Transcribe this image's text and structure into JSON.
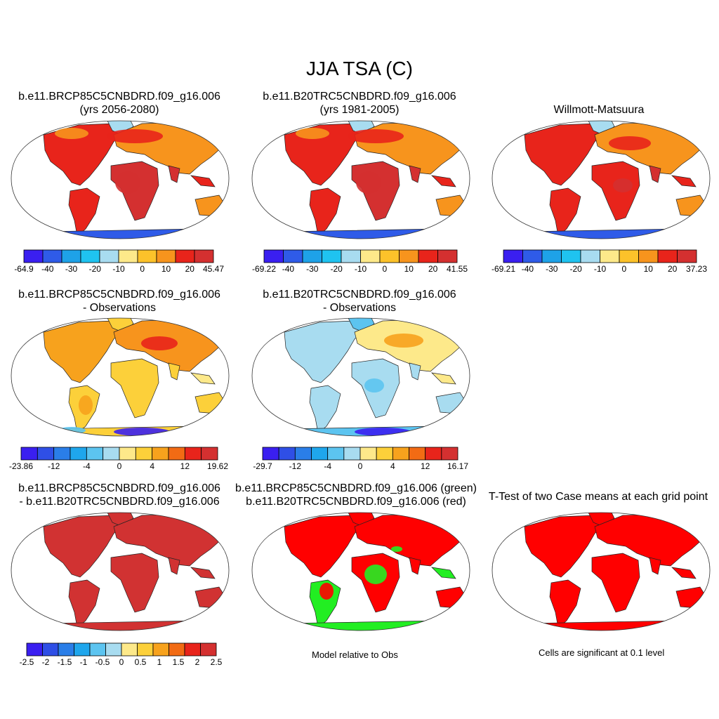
{
  "title": "JJA TSA (C)",
  "panels": [
    {
      "id": "p1",
      "title_lines": [
        "b.e11.BRCP85C5CNBDRD.f09_g16.006",
        "(yrs 2056-2080)"
      ],
      "kind": "abs_hot"
    },
    {
      "id": "p2",
      "title_lines": [
        "b.e11.B20TRC5CNBDRD.f09_g16.006",
        "(yrs 1981-2005)"
      ],
      "kind": "abs"
    },
    {
      "id": "p3",
      "title_lines": [
        "Willmott-Matsuura"
      ],
      "kind": "abs"
    },
    {
      "id": "p4",
      "title_lines": [
        "b.e11.BRCP85C5CNBDRD.f09_g16.006",
        "- Observations"
      ],
      "kind": "diff_warm"
    },
    {
      "id": "p5",
      "title_lines": [
        "b.e11.B20TRC5CNBDRD.f09_g16.006",
        "- Observations"
      ],
      "kind": "diff_cool"
    },
    {
      "id": "p7",
      "title_lines": [
        "b.e11.BRCP85C5CNBDRD.f09_g16.006",
        "- b.e11.B20TRC5CNBDRD.f09_g16.006"
      ],
      "kind": "diff2"
    },
    {
      "id": "p8",
      "title_lines": [
        "b.e11.BRCP85C5CNBDRD.f09_g16.006 (green)",
        "b.e11.B20TRC5CNBDRD.f09_g16.006 (red)"
      ],
      "kind": "green_red"
    },
    {
      "id": "p9",
      "title_lines": [
        "T-Test of two Case means at each grid point"
      ],
      "kind": "ttest"
    }
  ],
  "colorbars": [
    {
      "id": "cb1",
      "labels": [
        "-64.9",
        "-40",
        "-30",
        "-20",
        "-10",
        "0",
        "10",
        "20",
        "45.47"
      ]
    },
    {
      "id": "cb2",
      "labels": [
        "-69.22",
        "-40",
        "-30",
        "-20",
        "-10",
        "0",
        "10",
        "20",
        "41.55"
      ]
    },
    {
      "id": "cb3",
      "labels": [
        "-69.21",
        "-40",
        "-30",
        "-20",
        "-10",
        "0",
        "10",
        "20",
        "37.23"
      ]
    },
    {
      "id": "cb4",
      "labels": [
        "-23.86",
        "-12",
        "-4",
        "0",
        "4",
        "12",
        "19.62"
      ]
    },
    {
      "id": "cb5",
      "labels": [
        "-29.7",
        "-12",
        "-4",
        "0",
        "4",
        "12",
        "16.17"
      ]
    },
    {
      "id": "cb6",
      "labels": [
        "-2.5",
        "-2",
        "-1.5",
        "-1",
        "-0.5",
        "0",
        "0.5",
        "1",
        "1.5",
        "2",
        "2.5"
      ]
    }
  ],
  "notes": {
    "model_relative": "Model relative to Obs",
    "significance": "Cells are significant at 0.1 level"
  },
  "colors": {
    "abs_palette": [
      "#3a1ff0",
      "#2f5be8",
      "#1ea2e8",
      "#1fc3f0",
      "#a8dcf0",
      "#fde98a",
      "#fcc22a",
      "#f7941d",
      "#e8241b",
      "#d43030"
    ],
    "diff_palette": [
      "#3a1ff0",
      "#2f4fe6",
      "#2a7ee8",
      "#1fa6ec",
      "#5cc4f0",
      "#a8dcf0",
      "#fde98a",
      "#fcd03a",
      "#f7a21d",
      "#f26b14",
      "#e8241b",
      "#d43030"
    ],
    "red": "#ff0000",
    "green": "#22ee22",
    "dark_red": "#d13232"
  }
}
